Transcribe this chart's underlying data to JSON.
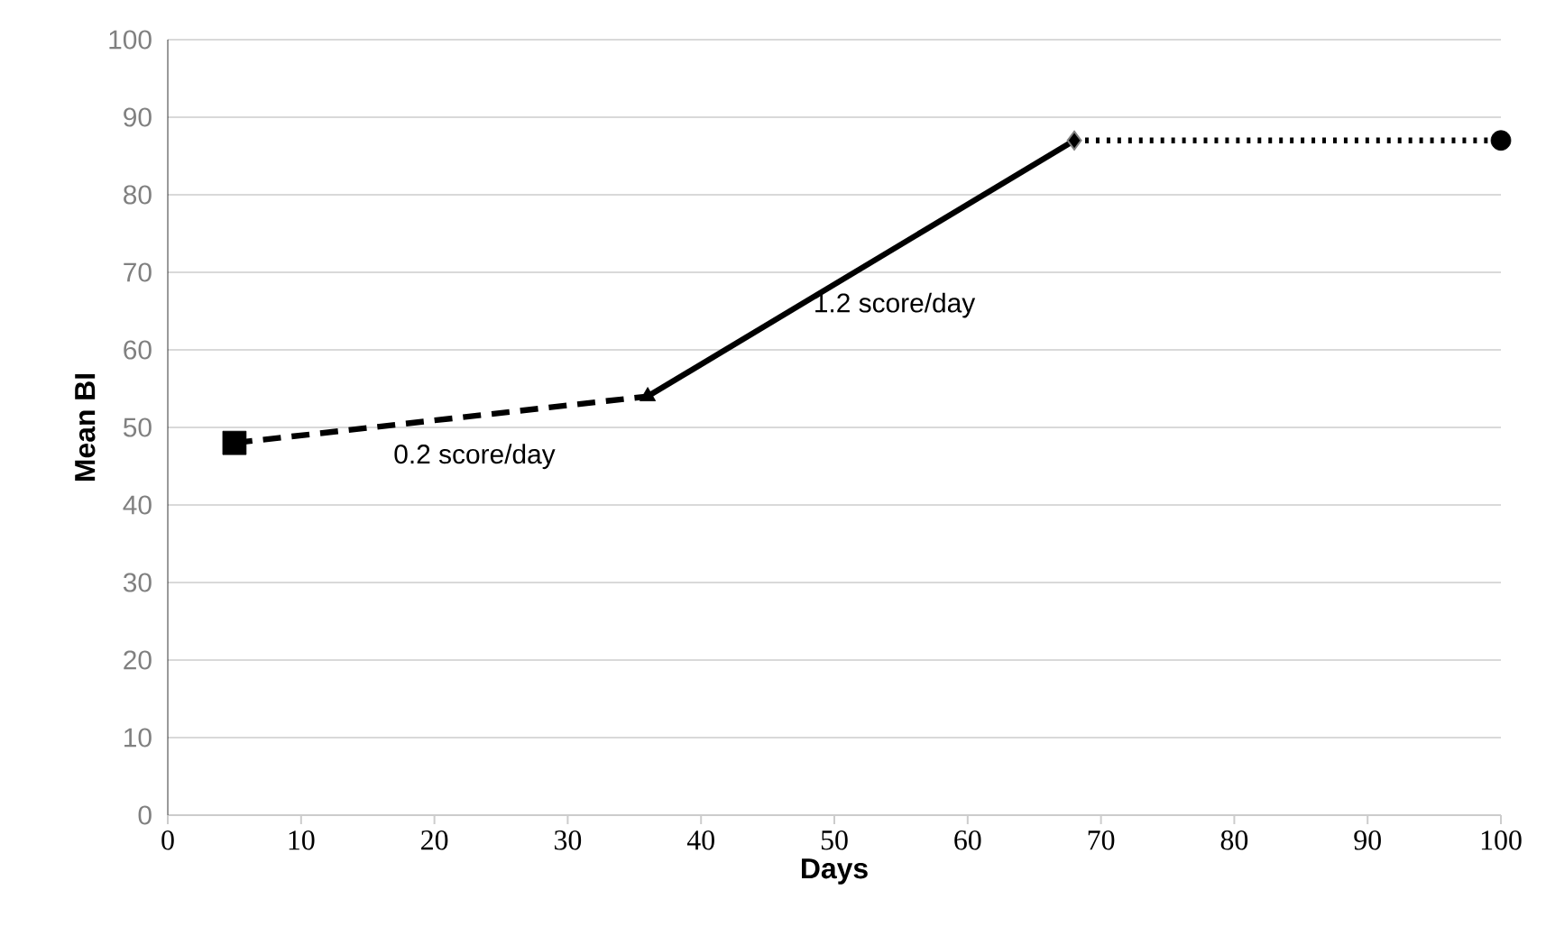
{
  "chart_data": {
    "type": "line",
    "xlabel": "Days",
    "ylabel": "Mean BI",
    "xlim": [
      0,
      100
    ],
    "ylim": [
      0,
      100
    ],
    "xticks": [
      0,
      10,
      20,
      30,
      40,
      50,
      60,
      70,
      80,
      90,
      100
    ],
    "yticks": [
      0,
      10,
      20,
      30,
      40,
      50,
      60,
      70,
      80,
      90,
      100
    ],
    "grid": "y",
    "series": [
      {
        "x": [
          5,
          36
        ],
        "values": [
          48,
          54
        ],
        "color": "#000000",
        "line_style": "dashed",
        "marker": "none"
      },
      {
        "x": [
          36,
          68
        ],
        "values": [
          54,
          87
        ],
        "color": "#000000",
        "line_style": "solid",
        "marker": "none"
      },
      {
        "x": [
          68,
          100
        ],
        "values": [
          87,
          87
        ],
        "color": "#000000",
        "line_style": "dotted",
        "marker": "none"
      },
      {
        "type": "scatter",
        "x": [
          5
        ],
        "values": [
          48
        ],
        "color": "#000000",
        "marker": "square"
      },
      {
        "type": "scatter",
        "x": [
          36
        ],
        "values": [
          54
        ],
        "color": "#000000",
        "marker": "triangle"
      },
      {
        "type": "scatter",
        "x": [
          68
        ],
        "values": [
          87
        ],
        "color": "#000000",
        "marker": "diamond"
      },
      {
        "type": "scatter",
        "x": [
          100
        ],
        "values": [
          87
        ],
        "color": "#000000",
        "marker": "circle"
      }
    ],
    "annotations": [
      "0.2 score/day",
      "1.2 score/day"
    ]
  }
}
